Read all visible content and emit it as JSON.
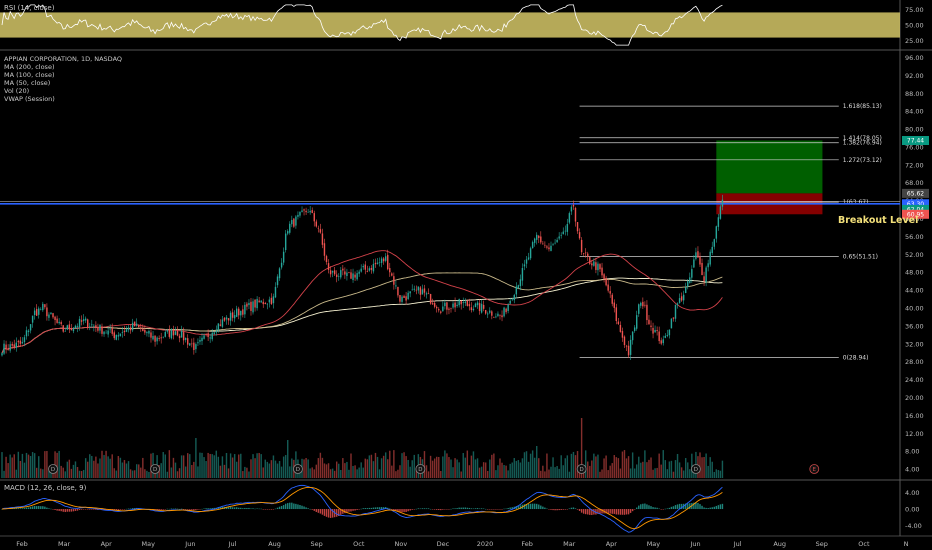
{
  "indicators": {
    "rsi": "RSI (14, close)",
    "macd": "MACD (12, 26, close, 9)",
    "main": [
      "APPIAN CORPORATION, 1D, NASDAQ",
      "MA (200, close)",
      "MA (100, close)",
      "MA (50, close)",
      "Vol (20)",
      "VWAP (Session)"
    ]
  },
  "annotation": "Breakout Level",
  "colors": {
    "up": "#26a69a",
    "down": "#ef5350",
    "rsi_band": "#c9bb62",
    "level": "#2962ff",
    "target": "#006400",
    "stop": "#8b0000"
  },
  "chart_data": {
    "type": "candlestick",
    "x_tick_labels": [
      "Feb",
      "Mar",
      "Apr",
      "May",
      "Jun",
      "Jul",
      "Aug",
      "Sep",
      "Oct",
      "Nov",
      "Dec",
      "2020",
      "Feb",
      "Mar",
      "Apr",
      "May",
      "Jun",
      "Jul",
      "Aug",
      "Sep",
      "Oct",
      "N"
    ],
    "price_axis": {
      "ticks": [
        "96.00",
        "92.00",
        "88.00",
        "84.00",
        "80.00",
        "76.00",
        "72.00",
        "68.00",
        "64.00",
        "60.00",
        "56.00",
        "52.00",
        "48.00",
        "44.00",
        "40.00",
        "36.00",
        "32.00",
        "28.00",
        "24.00",
        "20.00",
        "16.00",
        "12.00",
        "8.00",
        "4.00"
      ],
      "range": [
        2,
        97
      ]
    },
    "rsi_axis": {
      "ticks": [
        "75.00",
        "50.00",
        "25.00"
      ],
      "range": [
        15,
        85
      ],
      "band": [
        30,
        70
      ]
    },
    "macd_axis": {
      "ticks": [
        "4.00",
        "0.00",
        "-4.00"
      ],
      "range": [
        -6,
        6.5
      ]
    },
    "fib_levels": [
      {
        "label": "1.618(85.13)",
        "value": 85.13
      },
      {
        "label": "1.414(78.05)",
        "value": 78.05
      },
      {
        "label": "1.382(76.94)",
        "value": 76.94
      },
      {
        "label": "1.272(73.12)",
        "value": 73.12
      },
      {
        "label": "1(63.67)",
        "value": 63.67
      },
      {
        "label": "0.65(51.51)",
        "value": 51.51
      },
      {
        "label": "0(28.94)",
        "value": 28.94
      }
    ],
    "price_tags": [
      {
        "label": "77.44",
        "value": 77.44,
        "color": "#089981"
      },
      {
        "label": "65.62",
        "value": 65.62,
        "color": "#444444"
      },
      {
        "label": "63.30",
        "value": 63.3,
        "color": "#2962ff"
      },
      {
        "label": "62.04",
        "value": 62.04,
        "color": "#089981"
      },
      {
        "label": "60.95",
        "value": 60.95,
        "color": "#ef5350"
      }
    ],
    "breakout_level": 63.3,
    "position": {
      "entry": 65.62,
      "target": 77.44,
      "stop": 60.95
    },
    "key_points": [
      {
        "d": 0,
        "p": 31
      },
      {
        "d": 10,
        "p": 32
      },
      {
        "d": 16,
        "p": 39
      },
      {
        "d": 20,
        "p": 40
      },
      {
        "d": 30,
        "p": 35
      },
      {
        "d": 40,
        "p": 37
      },
      {
        "d": 55,
        "p": 34
      },
      {
        "d": 65,
        "p": 36
      },
      {
        "d": 75,
        "p": 33
      },
      {
        "d": 85,
        "p": 35
      },
      {
        "d": 95,
        "p": 31
      },
      {
        "d": 105,
        "p": 36
      },
      {
        "d": 115,
        "p": 39
      },
      {
        "d": 125,
        "p": 41
      },
      {
        "d": 133,
        "p": 42
      },
      {
        "d": 140,
        "p": 58
      },
      {
        "d": 150,
        "p": 62
      },
      {
        "d": 155,
        "p": 58
      },
      {
        "d": 160,
        "p": 48
      },
      {
        "d": 170,
        "p": 47
      },
      {
        "d": 180,
        "p": 49
      },
      {
        "d": 188,
        "p": 51
      },
      {
        "d": 195,
        "p": 42
      },
      {
        "d": 205,
        "p": 44
      },
      {
        "d": 215,
        "p": 40
      },
      {
        "d": 225,
        "p": 41
      },
      {
        "d": 235,
        "p": 40
      },
      {
        "d": 245,
        "p": 38
      },
      {
        "d": 255,
        "p": 48
      },
      {
        "d": 262,
        "p": 56
      },
      {
        "d": 268,
        "p": 53
      },
      {
        "d": 275,
        "p": 56
      },
      {
        "d": 280,
        "p": 63
      },
      {
        "d": 284,
        "p": 52
      },
      {
        "d": 292,
        "p": 49
      },
      {
        "d": 297,
        "p": 44
      },
      {
        "d": 302,
        "p": 36
      },
      {
        "d": 307,
        "p": 30
      },
      {
        "d": 313,
        "p": 42
      },
      {
        "d": 318,
        "p": 36
      },
      {
        "d": 324,
        "p": 32
      },
      {
        "d": 330,
        "p": 40
      },
      {
        "d": 336,
        "p": 45
      },
      {
        "d": 340,
        "p": 52
      },
      {
        "d": 344,
        "p": 47
      },
      {
        "d": 349,
        "p": 56
      },
      {
        "d": 353,
        "p": 64
      }
    ],
    "events": [
      {
        "d": 25,
        "type": "dividend"
      },
      {
        "d": 75,
        "type": "dividend"
      },
      {
        "d": 145,
        "type": "dividend"
      },
      {
        "d": 205,
        "type": "dividend"
      },
      {
        "d": 284,
        "type": "dividend"
      },
      {
        "d": 340,
        "type": "dividend"
      },
      {
        "d": 398,
        "type": "earnings"
      }
    ]
  }
}
